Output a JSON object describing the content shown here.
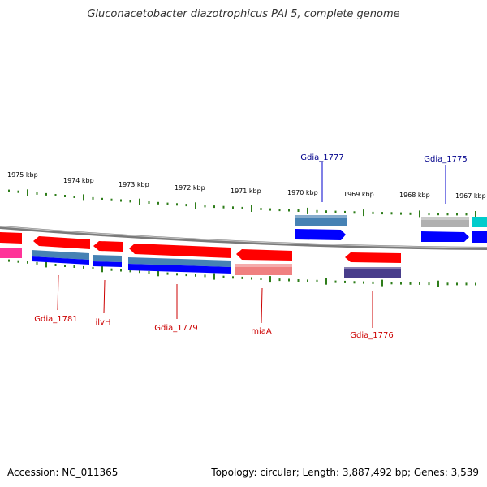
{
  "title": "Gluconacetobacter diazotrophicus PAI 5, complete genome",
  "footer": {
    "accession": "Accession: NC_011365",
    "stats": "Topology: circular; Length: 3,887,492 bp; Genes: 3,539"
  },
  "ruler_labels": [
    "1975 kbp",
    "1974 kbp",
    "1973 kbp",
    "1972 kbp",
    "1971 kbp",
    "1970 kbp",
    "1969 kbp",
    "1968 kbp",
    "1967 kbp"
  ],
  "gene_labels": [
    {
      "name": "Gdia_1777",
      "color": "#00008b"
    },
    {
      "name": "Gdia_1775",
      "color": "#00008b"
    },
    {
      "name": "Gdia_1781",
      "color": "#cc0000"
    },
    {
      "name": "ilvH",
      "color": "#cc0000"
    },
    {
      "name": "Gdia_1779",
      "color": "#cc0000"
    },
    {
      "name": "miaA",
      "color": "#cc0000"
    },
    {
      "name": "Gdia_1776",
      "color": "#cc0000"
    }
  ],
  "colors": {
    "forward_gene": "#ff0000",
    "cds_blue": "#0000ff",
    "steel_blue": "#4682b4",
    "salmon": "#f08080",
    "slate": "#483d8b",
    "gray": "#b0b0b0",
    "cyan": "#00cccc",
    "magenta": "#ff3399",
    "tick_green": "#2e7d1a",
    "backbone": "#808080"
  }
}
